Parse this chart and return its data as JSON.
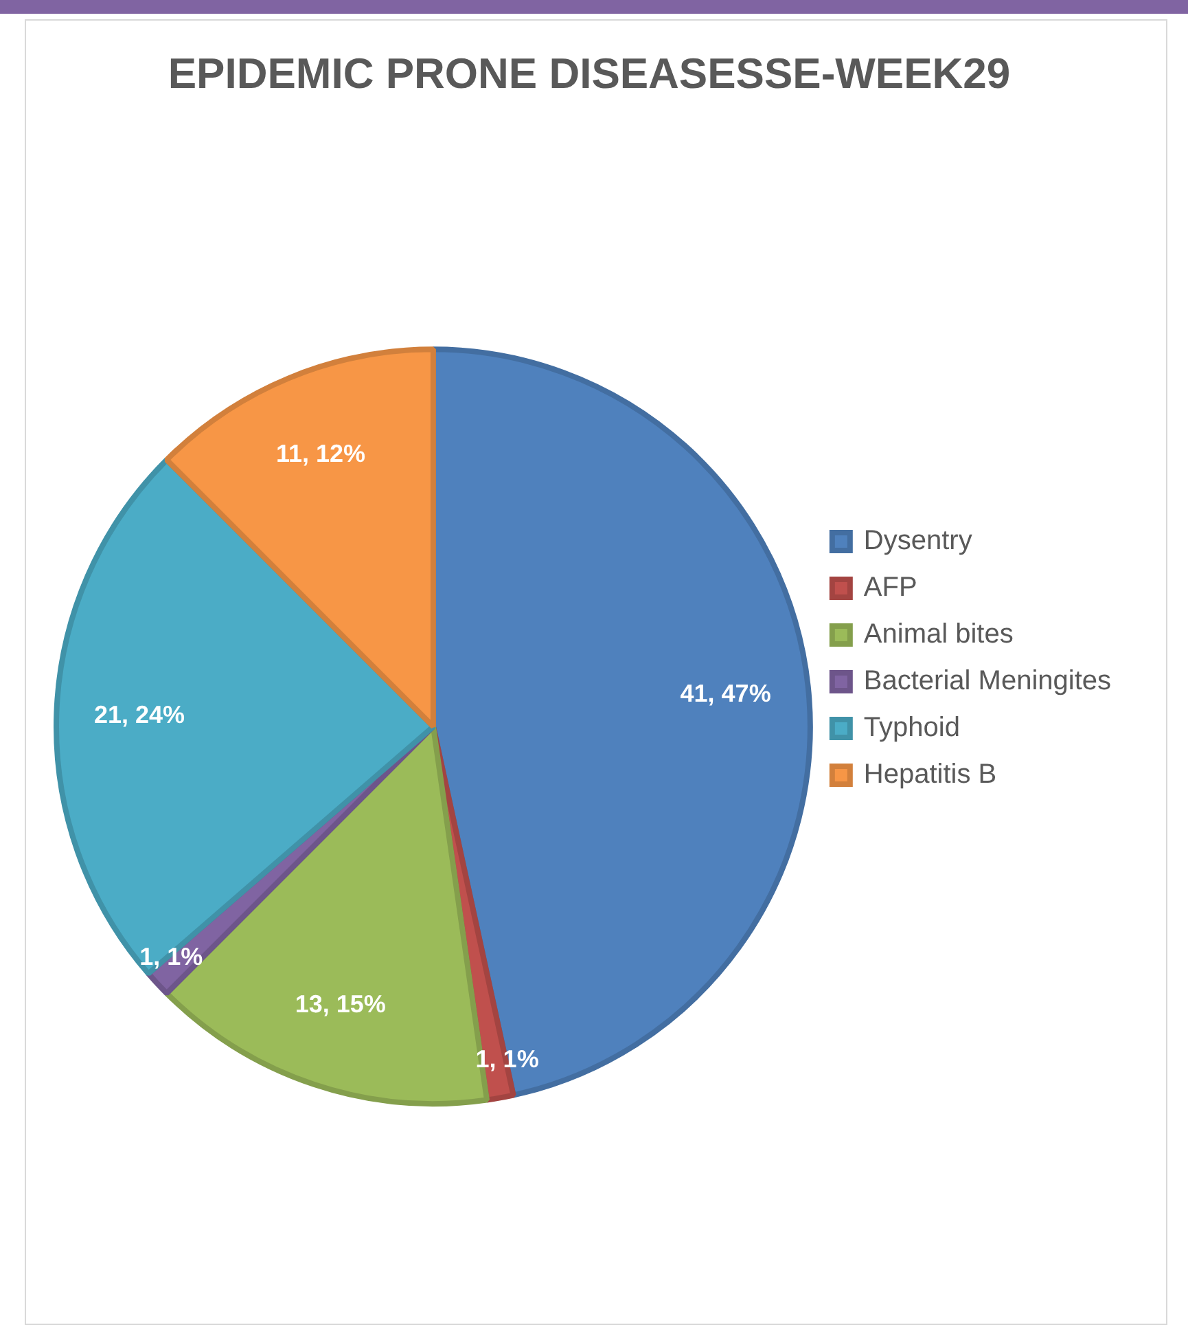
{
  "chart_data": {
    "type": "pie",
    "title": "EPIDEMIC PRONE DISEASESSE-WEEK29",
    "categories": [
      "Dysentry",
      "AFP",
      "Animal bites",
      "Bacterial Meningites",
      "Typhoid",
      "Hepatitis B"
    ],
    "values": [
      41,
      1,
      13,
      1,
      21,
      11
    ],
    "value_labels": [
      "41, 47%",
      "1, 1%",
      "13, 15%",
      "1, 1%",
      "21, 24%",
      "11, 12%"
    ],
    "colors": [
      "#4f81bd",
      "#c0504d",
      "#9bbb59",
      "#8064a2",
      "#4bacc6",
      "#f79646"
    ],
    "legend": "right"
  }
}
